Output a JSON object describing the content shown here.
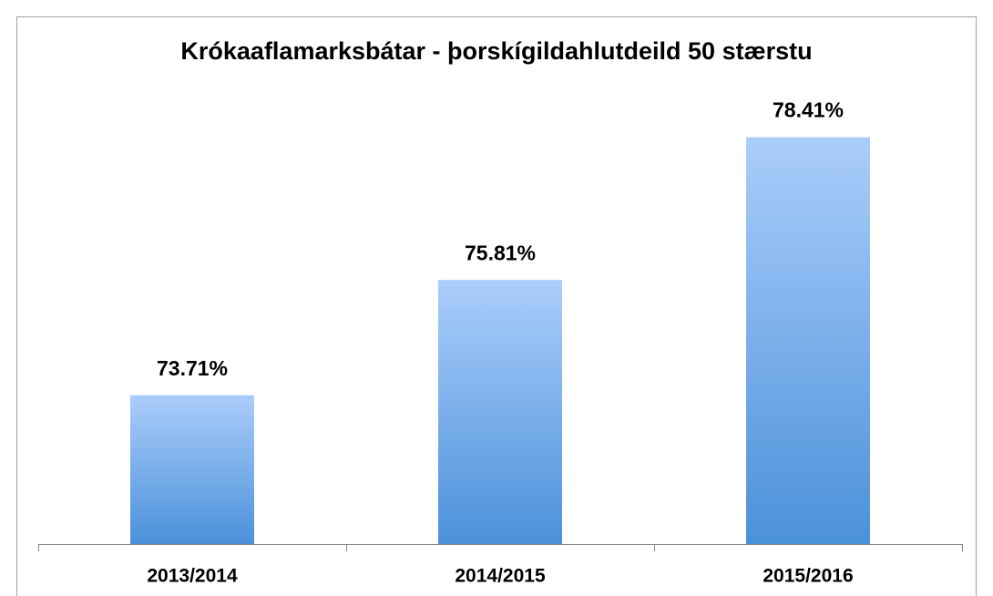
{
  "chart_data": {
    "type": "bar",
    "title": "Krókaaflamarksbátar - þorskígildahlutdeild 50 stærstu",
    "categories": [
      "2013/2014",
      "2014/2015",
      "2015/2016"
    ],
    "values": [
      73.71,
      75.81,
      78.41
    ],
    "value_labels": [
      "73.71%",
      "75.81%",
      "78.41%"
    ],
    "color": "#5b9be0",
    "ylim": [
      71,
      79
    ]
  }
}
